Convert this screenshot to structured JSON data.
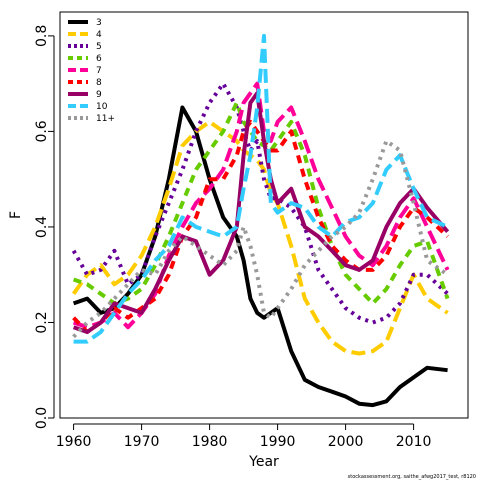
{
  "chart_data": {
    "type": "line",
    "title": "",
    "xlabel": "Year",
    "ylabel": "F",
    "xlim": [
      1958,
      2018
    ],
    "ylim": [
      0,
      0.85
    ],
    "xticks": [
      1960,
      1970,
      1980,
      1990,
      2000,
      2010
    ],
    "yticks": [
      0.0,
      0.2,
      0.4,
      0.6,
      0.8
    ],
    "ytick_labels": [
      "0.0",
      "0.2",
      "0.4",
      "0.6",
      "0.8"
    ],
    "legend_position": "top-left",
    "grid": false,
    "x": [
      1960,
      1962,
      1964,
      1966,
      1968,
      1970,
      1972,
      1974,
      1976,
      1978,
      1980,
      1982,
      1984,
      1985,
      1986,
      1987,
      1988,
      1989,
      1990,
      1992,
      1994,
      1996,
      1998,
      2000,
      2002,
      2004,
      2006,
      2008,
      2010,
      2012,
      2015
    ],
    "series": [
      {
        "name": "3",
        "color": "#000000",
        "dash": "solid",
        "values": [
          0.24,
          0.25,
          0.22,
          0.23,
          0.26,
          0.3,
          0.38,
          0.5,
          0.65,
          0.6,
          0.5,
          0.42,
          0.38,
          0.33,
          0.25,
          0.22,
          0.21,
          0.22,
          0.23,
          0.14,
          0.08,
          0.065,
          0.055,
          0.045,
          0.03,
          0.027,
          0.035,
          0.065,
          0.085,
          0.105,
          0.1
        ]
      },
      {
        "name": "4",
        "color": "#ffcc00",
        "dash": "long",
        "values": [
          0.26,
          0.3,
          0.32,
          0.28,
          0.3,
          0.34,
          0.4,
          0.48,
          0.57,
          0.6,
          0.62,
          0.6,
          0.58,
          0.56,
          0.55,
          0.54,
          0.52,
          0.47,
          0.45,
          0.36,
          0.25,
          0.2,
          0.16,
          0.14,
          0.135,
          0.14,
          0.16,
          0.23,
          0.3,
          0.25,
          0.22
        ]
      },
      {
        "name": "5",
        "color": "#660099",
        "dash": "dot",
        "values": [
          0.35,
          0.3,
          0.31,
          0.35,
          0.28,
          0.3,
          0.38,
          0.45,
          0.52,
          0.6,
          0.66,
          0.7,
          0.65,
          0.6,
          0.56,
          0.58,
          0.5,
          0.46,
          0.46,
          0.44,
          0.4,
          0.31,
          0.27,
          0.23,
          0.21,
          0.2,
          0.21,
          0.24,
          0.3,
          0.3,
          0.26
        ]
      },
      {
        "name": "6",
        "color": "#66cc00",
        "dash": "dash",
        "values": [
          0.29,
          0.28,
          0.26,
          0.24,
          0.25,
          0.27,
          0.32,
          0.38,
          0.45,
          0.52,
          0.56,
          0.6,
          0.66,
          0.62,
          0.6,
          0.58,
          0.57,
          0.56,
          0.58,
          0.62,
          0.55,
          0.44,
          0.36,
          0.3,
          0.27,
          0.24,
          0.27,
          0.32,
          0.36,
          0.37,
          0.25
        ]
      },
      {
        "name": "7",
        "color": "#ff0099",
        "dash": "long",
        "values": [
          0.2,
          0.19,
          0.2,
          0.22,
          0.19,
          0.22,
          0.26,
          0.34,
          0.4,
          0.45,
          0.48,
          0.52,
          0.6,
          0.66,
          0.68,
          0.7,
          0.6,
          0.58,
          0.62,
          0.65,
          0.58,
          0.5,
          0.44,
          0.38,
          0.34,
          0.32,
          0.36,
          0.42,
          0.46,
          0.4,
          0.31
        ]
      },
      {
        "name": "8",
        "color": "#ff0000",
        "dash": "dash",
        "values": [
          0.21,
          0.18,
          0.2,
          0.23,
          0.21,
          0.23,
          0.25,
          0.3,
          0.38,
          0.42,
          0.5,
          0.5,
          0.55,
          0.6,
          0.62,
          0.6,
          0.58,
          0.56,
          0.56,
          0.6,
          0.5,
          0.42,
          0.36,
          0.33,
          0.31,
          0.31,
          0.34,
          0.4,
          0.44,
          0.42,
          0.38
        ]
      },
      {
        "name": "9",
        "color": "#990066",
        "dash": "solid",
        "values": [
          0.19,
          0.18,
          0.2,
          0.24,
          0.23,
          0.22,
          0.27,
          0.33,
          0.38,
          0.37,
          0.3,
          0.33,
          0.4,
          0.55,
          0.66,
          0.68,
          0.58,
          0.5,
          0.45,
          0.48,
          0.4,
          0.38,
          0.35,
          0.32,
          0.31,
          0.33,
          0.4,
          0.45,
          0.48,
          0.44,
          0.39
        ]
      },
      {
        "name": "10",
        "color": "#33ccff",
        "dash": "long",
        "values": [
          0.16,
          0.16,
          0.18,
          0.22,
          0.26,
          0.29,
          0.33,
          0.36,
          0.42,
          0.4,
          0.39,
          0.38,
          0.4,
          0.48,
          0.55,
          0.65,
          0.8,
          0.45,
          0.43,
          0.45,
          0.44,
          0.4,
          0.38,
          0.41,
          0.42,
          0.45,
          0.52,
          0.55,
          0.48,
          0.42,
          0.4
        ]
      },
      {
        "name": "11+",
        "color": "#999999",
        "dash": "dot",
        "values": [
          0.17,
          0.2,
          0.22,
          0.25,
          0.28,
          0.31,
          0.3,
          0.35,
          0.38,
          0.36,
          0.34,
          0.32,
          0.35,
          0.4,
          0.36,
          0.3,
          0.22,
          0.21,
          0.23,
          0.27,
          0.32,
          0.35,
          0.38,
          0.4,
          0.43,
          0.5,
          0.58,
          0.56,
          0.45,
          0.33,
          0.3
        ]
      }
    ]
  },
  "footnote": "stockassessment.org, saithe_afwg2017_test, r8120"
}
